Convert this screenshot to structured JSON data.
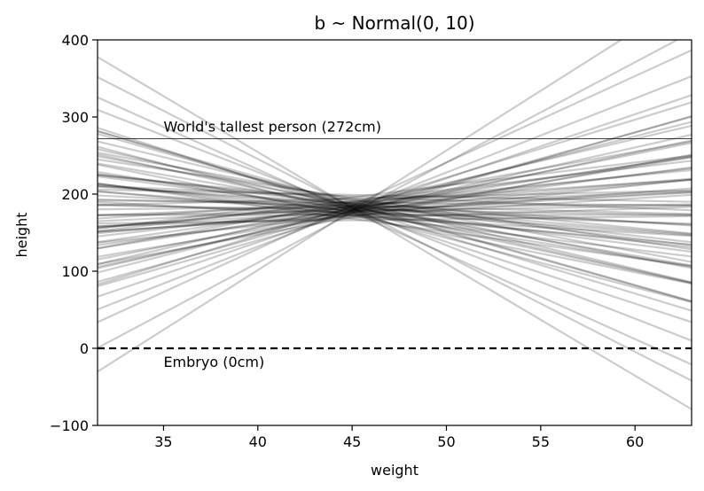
{
  "chart_data": {
    "type": "line",
    "title": "b ~ Normal(0, 10)",
    "xlabel": "weight",
    "ylabel": "height",
    "xlim": [
      31.5,
      63.0
    ],
    "ylim": [
      -100,
      400
    ],
    "xticks": [
      35,
      40,
      45,
      50,
      55,
      60
    ],
    "yticks": [
      -100,
      0,
      100,
      200,
      300,
      400
    ],
    "ytick_labels": [
      "−100",
      "0",
      "100",
      "200",
      "300",
      "400"
    ],
    "xbar": 45,
    "line_color": "#000000",
    "line_opacity": 0.2,
    "reference_lines": [
      {
        "y": 272,
        "style": "solid",
        "label": "World's tallest person (272cm)",
        "label_x": 35
      },
      {
        "y": 0,
        "style": "dashed",
        "label": "Embryo (0cm)",
        "label_x": 35
      }
    ],
    "prior_lines": [
      {
        "a": 178,
        "b": -8.0
      },
      {
        "a": 182,
        "b": -7.4
      },
      {
        "a": 185,
        "b": -6.9
      },
      {
        "a": 175,
        "b": -6.4
      },
      {
        "a": 190,
        "b": -5.8
      },
      {
        "a": 180,
        "b": -5.3
      },
      {
        "a": 172,
        "b": -4.9
      },
      {
        "a": 187,
        "b": -4.6
      },
      {
        "a": 183,
        "b": -4.2
      },
      {
        "a": 176,
        "b": -3.9
      },
      {
        "a": 195,
        "b": -3.7
      },
      {
        "a": 168,
        "b": -3.4
      },
      {
        "a": 181,
        "b": -3.1
      },
      {
        "a": 186,
        "b": -2.9
      },
      {
        "a": 178,
        "b": -2.6
      },
      {
        "a": 192,
        "b": -2.4
      },
      {
        "a": 174,
        "b": -2.2
      },
      {
        "a": 184,
        "b": -2.0
      },
      {
        "a": 179,
        "b": -1.8
      },
      {
        "a": 188,
        "b": -1.6
      },
      {
        "a": 171,
        "b": -1.4
      },
      {
        "a": 182,
        "b": -1.2
      },
      {
        "a": 197,
        "b": -1.0
      },
      {
        "a": 176,
        "b": -0.8
      },
      {
        "a": 185,
        "b": -0.6
      },
      {
        "a": 180,
        "b": -0.4
      },
      {
        "a": 189,
        "b": -0.2
      },
      {
        "a": 173,
        "b": 0.0
      },
      {
        "a": 183,
        "b": 0.2
      },
      {
        "a": 178,
        "b": 0.4
      },
      {
        "a": 194,
        "b": 0.6
      },
      {
        "a": 169,
        "b": 0.8
      },
      {
        "a": 186,
        "b": 1.0
      },
      {
        "a": 181,
        "b": 1.2
      },
      {
        "a": 177,
        "b": 1.4
      },
      {
        "a": 190,
        "b": 1.6
      },
      {
        "a": 175,
        "b": 1.8
      },
      {
        "a": 184,
        "b": 2.0
      },
      {
        "a": 179,
        "b": 2.2
      },
      {
        "a": 188,
        "b": 2.4
      },
      {
        "a": 172,
        "b": 2.6
      },
      {
        "a": 183,
        "b": 2.8
      },
      {
        "a": 196,
        "b": 3.0
      },
      {
        "a": 177,
        "b": 3.2
      },
      {
        "a": 185,
        "b": 3.5
      },
      {
        "a": 181,
        "b": 3.8
      },
      {
        "a": 174,
        "b": 4.1
      },
      {
        "a": 189,
        "b": 4.4
      },
      {
        "a": 180,
        "b": 4.8
      },
      {
        "a": 176,
        "b": 5.2
      },
      {
        "a": 186,
        "b": 5.7
      },
      {
        "a": 182,
        "b": 6.2
      },
      {
        "a": 178,
        "b": 6.8
      },
      {
        "a": 184,
        "b": 7.5
      },
      {
        "a": 179,
        "b": 8.3
      },
      {
        "a": 181,
        "b": -9.5
      },
      {
        "a": 177,
        "b": -11.0
      },
      {
        "a": 183,
        "b": -12.5
      },
      {
        "a": 180,
        "b": 9.6
      },
      {
        "a": 185,
        "b": 11.2
      },
      {
        "a": 176,
        "b": 13.0
      },
      {
        "a": 182,
        "b": -14.5
      },
      {
        "a": 179,
        "b": 15.5
      },
      {
        "a": 173,
        "b": -3.0
      },
      {
        "a": 191,
        "b": 2.9
      },
      {
        "a": 166,
        "b": 0.3
      },
      {
        "a": 199,
        "b": -0.5
      },
      {
        "a": 170,
        "b": 4.5
      },
      {
        "a": 193,
        "b": -4.5
      },
      {
        "a": 187,
        "b": -7.0
      },
      {
        "a": 175,
        "b": 7.0
      },
      {
        "a": 184,
        "b": -5.5
      },
      {
        "a": 178,
        "b": 5.5
      },
      {
        "a": 188,
        "b": -2.8
      },
      {
        "a": 172,
        "b": 1.5
      }
    ]
  }
}
